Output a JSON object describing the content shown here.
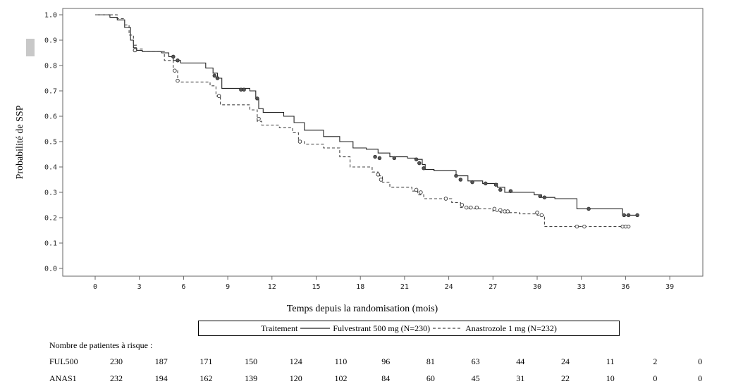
{
  "chart_data": {
    "type": "line",
    "ylabel": "Probabilité de SSP",
    "xlabel": "Temps depuis la randomisation (mois)",
    "xlim": [
      -3,
      42
    ],
    "ylim": [
      0,
      1.0
    ],
    "xticks": [
      "0",
      "3",
      "6",
      "9",
      "12",
      "15",
      "18",
      "21",
      "24",
      "27",
      "30",
      "33",
      "36",
      "39"
    ],
    "yticks": [
      "0.0",
      "0.1",
      "0.2",
      "0.3",
      "0.4",
      "0.5",
      "0.6",
      "0.7",
      "0.8",
      "0.9",
      "1.0"
    ],
    "legend": {
      "title": "Traitement",
      "entries": [
        {
          "label": "Fulvestrant 500 mg (N=230)",
          "style": "solid"
        },
        {
          "label": "Anastrozole 1 mg (N=232)",
          "style": "dashed"
        }
      ]
    },
    "series": [
      {
        "name": "Fulvestrant 500 mg (N=230)",
        "style": "solid",
        "color": "#222222",
        "x": [
          0,
          1,
          1.5,
          2.0,
          2.4,
          2.6,
          2.8,
          3.2,
          4.5,
          5.0,
          5.3,
          5.8,
          7.5,
          8.0,
          8.3,
          8.6,
          10.5,
          10.9,
          11.1,
          11.4,
          12.8,
          13.5,
          14.2,
          15.5,
          16.6,
          17.5,
          18.4,
          19.2,
          20.0,
          21.2,
          21.8,
          22.2,
          22.4,
          23.0,
          24.5,
          25.3,
          26.3,
          27.3,
          27.8,
          29.8,
          30.3,
          31.2,
          32.7,
          35.8,
          36.8
        ],
        "y": [
          1.0,
          0.99,
          0.98,
          0.95,
          0.9,
          0.87,
          0.86,
          0.855,
          0.85,
          0.835,
          0.82,
          0.81,
          0.79,
          0.77,
          0.75,
          0.71,
          0.7,
          0.67,
          0.63,
          0.615,
          0.6,
          0.575,
          0.545,
          0.52,
          0.5,
          0.475,
          0.47,
          0.455,
          0.44,
          0.435,
          0.43,
          0.41,
          0.39,
          0.385,
          0.365,
          0.345,
          0.335,
          0.32,
          0.3,
          0.29,
          0.28,
          0.275,
          0.235,
          0.21,
          0.21
        ],
        "censor_x": [
          2.7,
          5.3,
          5.6,
          8.1,
          8.3,
          9.9,
          10.1,
          11.0,
          19.0,
          19.3,
          20.3,
          21.8,
          22.0,
          22.3,
          24.5,
          24.8,
          25.6,
          26.5,
          27.2,
          27.5,
          28.2,
          30.2,
          30.5,
          33.5,
          35.9,
          36.2,
          36.8
        ],
        "censor_y": [
          0.86,
          0.835,
          0.82,
          0.76,
          0.75,
          0.705,
          0.705,
          0.67,
          0.44,
          0.435,
          0.435,
          0.43,
          0.415,
          0.395,
          0.365,
          0.35,
          0.34,
          0.335,
          0.33,
          0.31,
          0.305,
          0.285,
          0.28,
          0.235,
          0.21,
          0.21,
          0.21
        ]
      },
      {
        "name": "Anastrozole 1 mg (N=232)",
        "style": "dashed",
        "color": "#444444",
        "x": [
          0,
          1.5,
          2.0,
          2.3,
          2.6,
          2.8,
          3.2,
          4.7,
          5.3,
          5.6,
          7.8,
          8.2,
          8.5,
          10.5,
          11.0,
          11.3,
          12.5,
          13.4,
          13.8,
          14.2,
          15.5,
          16.6,
          17.3,
          18.8,
          19.2,
          19.5,
          20.0,
          21.5,
          21.9,
          22.3,
          24.2,
          24.8,
          25.2,
          27.0,
          27.5,
          28.8,
          30.0,
          30.5,
          32.5,
          33.5,
          36.0
        ],
        "y": [
          1.0,
          0.985,
          0.96,
          0.92,
          0.88,
          0.865,
          0.855,
          0.82,
          0.78,
          0.735,
          0.72,
          0.68,
          0.645,
          0.625,
          0.58,
          0.565,
          0.555,
          0.535,
          0.5,
          0.49,
          0.475,
          0.44,
          0.4,
          0.38,
          0.365,
          0.34,
          0.32,
          0.305,
          0.29,
          0.275,
          0.26,
          0.24,
          0.235,
          0.225,
          0.22,
          0.215,
          0.21,
          0.165,
          0.165,
          0.165,
          0.165
        ],
        "censor_x": [
          2.7,
          5.4,
          5.6,
          8.4,
          11.1,
          13.9,
          19.2,
          19.4,
          21.8,
          22.1,
          23.8,
          24.9,
          25.2,
          25.5,
          25.9,
          27.1,
          27.5,
          27.8,
          28.0,
          30.0,
          30.3,
          32.7,
          33.2,
          35.8,
          36.0,
          36.2
        ],
        "censor_y": [
          0.86,
          0.78,
          0.74,
          0.68,
          0.59,
          0.5,
          0.37,
          0.35,
          0.31,
          0.3,
          0.275,
          0.25,
          0.24,
          0.24,
          0.24,
          0.235,
          0.23,
          0.225,
          0.225,
          0.22,
          0.21,
          0.165,
          0.165,
          0.165,
          0.165,
          0.165
        ]
      }
    ]
  },
  "risk_table": {
    "title": "Nombre de patientes à risque :",
    "rows": [
      {
        "label": "FUL500",
        "values": [
          "230",
          "187",
          "171",
          "150",
          "124",
          "110",
          "96",
          "81",
          "63",
          "44",
          "24",
          "11",
          "2",
          "0"
        ]
      },
      {
        "label": "ANAS1",
        "values": [
          "232",
          "194",
          "162",
          "139",
          "120",
          "102",
          "84",
          "60",
          "45",
          "31",
          "22",
          "10",
          "0",
          "0"
        ]
      }
    ]
  }
}
